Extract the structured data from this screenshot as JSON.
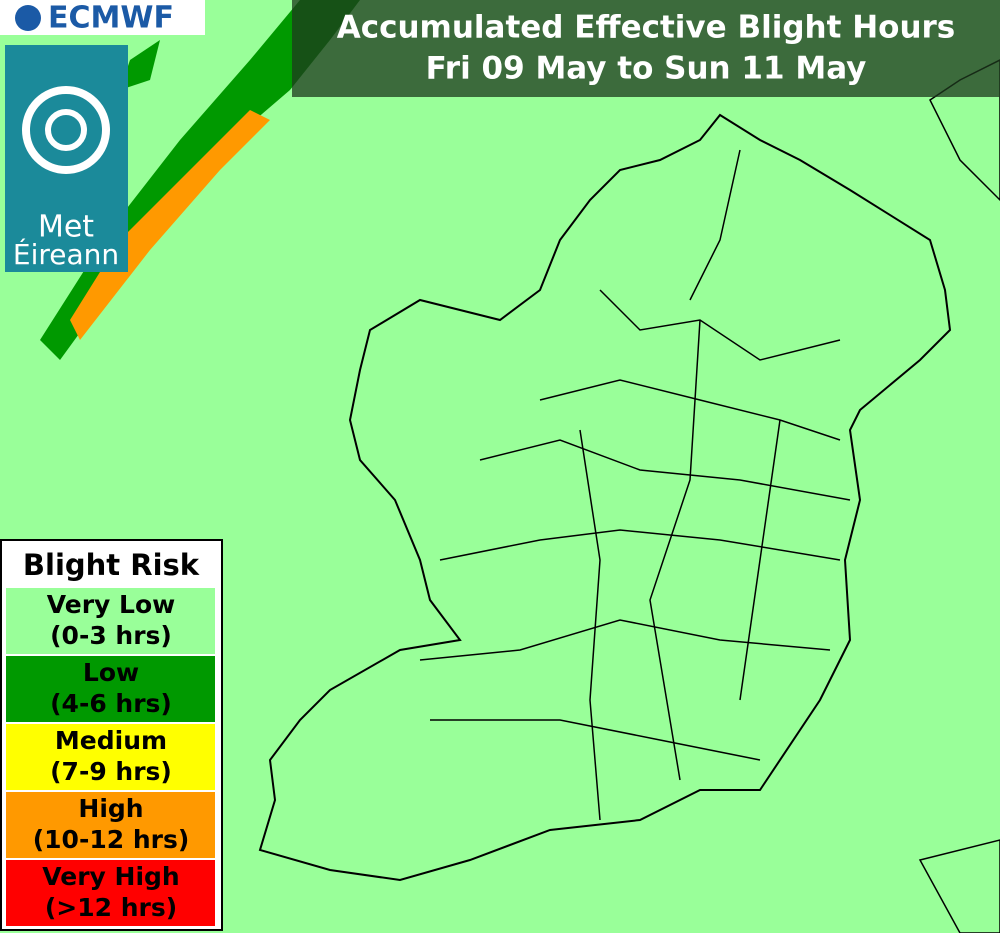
{
  "logo": {
    "ecmwf": "ECMWF",
    "met_line1": "Met",
    "met_line2": "Éireann"
  },
  "header": {
    "title": "Accumulated Effective Blight Hours",
    "subtitle": "Fri 09 May to Sun 11 May"
  },
  "legend": {
    "title": "Blight Risk",
    "items": [
      {
        "name": "Very Low",
        "range": "(0-3 hrs)",
        "color": "#99ff99"
      },
      {
        "name": "Low",
        "range": "(4-6 hrs)",
        "color": "#009900"
      },
      {
        "name": "Medium",
        "range": "(7-9 hrs)",
        "color": "#ffff00"
      },
      {
        "name": "High",
        "range": "(10-12 hrs)",
        "color": "#ff9900"
      },
      {
        "name": "Very High",
        "range": "(>12 hrs)",
        "color": "#ff0000"
      }
    ]
  }
}
